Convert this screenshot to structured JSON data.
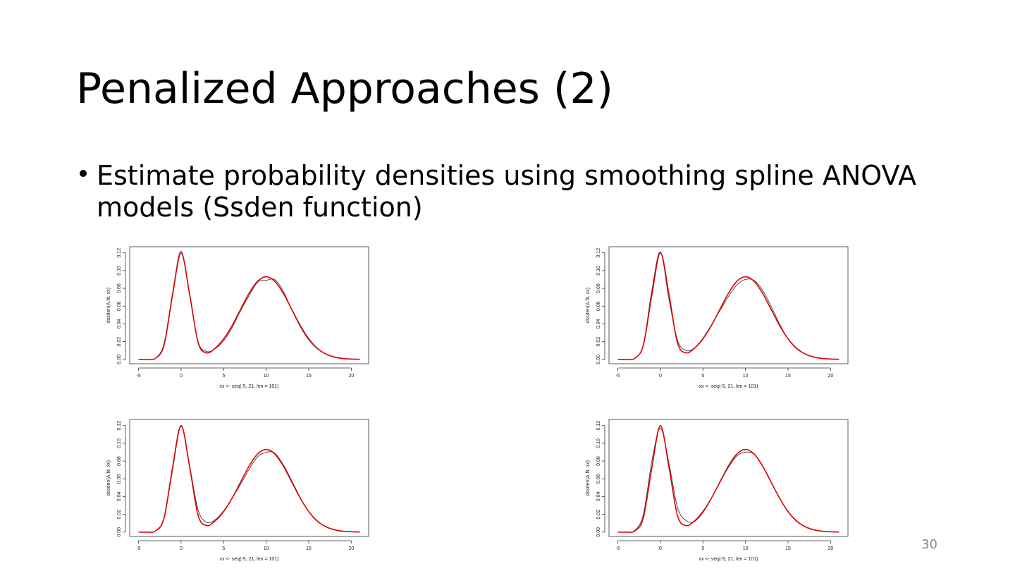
{
  "title": "Penalized Approaches (2)",
  "bullet": {
    "line1": "Estimate probability densities using smoothing spline ANOVA",
    "line2": "models  (Ssden function)"
  },
  "page_number": "30",
  "chart_data": [
    {
      "type": "line",
      "xlabel": "xx <- seq(-5, 21, len = 101)",
      "ylabel": "dssden(A.fit, xx)",
      "x": [
        -5,
        -4,
        -3,
        -2,
        -1,
        0,
        1,
        2,
        3,
        4,
        5,
        6,
        7,
        8,
        9,
        10,
        11,
        12,
        13,
        14,
        15,
        16,
        17,
        18,
        19,
        20,
        21
      ],
      "series": [
        {
          "color": "#3a3a3a",
          "values": [
            0,
            0,
            0.0015,
            0.018,
            0.075,
            0.122,
            0.072,
            0.02,
            0.009,
            0.012,
            0.021,
            0.036,
            0.055,
            0.072,
            0.087,
            0.089,
            0.09,
            0.077,
            0.056,
            0.037,
            0.022,
            0.012,
            0.006,
            0.003,
            0.0012,
            0.0005,
            0.0002
          ]
        },
        {
          "color": "#e00000",
          "values": [
            0,
            0,
            0.0013,
            0.0162,
            0.0727,
            0.12,
            0.0736,
            0.0189,
            0.0074,
            0.0126,
            0.0232,
            0.0383,
            0.0565,
            0.0746,
            0.0881,
            0.0931,
            0.0881,
            0.0746,
            0.0565,
            0.0383,
            0.0232,
            0.0126,
            0.0061,
            0.0027,
            0.001,
            0.0004,
            0.0001
          ]
        }
      ],
      "xlim": [
        -6.04,
        22.04
      ],
      "ylim": [
        -0.0049,
        0.1269
      ],
      "xticks": [
        -5,
        0,
        5,
        10,
        15,
        20
      ],
      "yticks": [
        {
          "value": 0,
          "label": "0.00"
        },
        {
          "value": 0.02,
          "label": "0.02"
        },
        {
          "value": 0.04,
          "label": "0.04"
        },
        {
          "value": 0.06,
          "label": "0.06"
        },
        {
          "value": 0.08,
          "label": "0.08"
        },
        {
          "value": 0.1,
          "label": "0.10"
        },
        {
          "value": 0.12,
          "label": "0.12"
        }
      ]
    },
    {
      "type": "line",
      "xlabel": "xx <- seq(-5, 21, len = 101)",
      "ylabel": "dssden(A.fit, xx)",
      "x": [
        -5,
        -4,
        -3,
        -2,
        -1,
        0,
        1,
        2,
        3,
        4,
        5,
        6,
        7,
        8,
        9,
        10,
        11,
        12,
        13,
        14,
        15,
        16,
        17,
        18,
        19,
        20,
        21
      ],
      "series": [
        {
          "color": "#3a3a3a",
          "values": [
            0,
            0,
            0.001,
            0.017,
            0.078,
            0.121,
            0.068,
            0.022,
            0.01,
            0.013,
            0.024,
            0.039,
            0.055,
            0.071,
            0.084,
            0.09,
            0.089,
            0.078,
            0.06,
            0.04,
            0.023,
            0.012,
            0.006,
            0.003,
            0.0012,
            0.0005,
            0.0002
          ]
        },
        {
          "color": "#e00000",
          "values": [
            0,
            0,
            0.0013,
            0.0162,
            0.0727,
            0.12,
            0.0736,
            0.0189,
            0.0074,
            0.0126,
            0.0232,
            0.0383,
            0.0565,
            0.0746,
            0.0881,
            0.0931,
            0.0881,
            0.0746,
            0.0565,
            0.0383,
            0.0232,
            0.0126,
            0.0061,
            0.0027,
            0.001,
            0.0004,
            0.0001
          ]
        }
      ],
      "xlim": [
        -6.04,
        22.04
      ],
      "ylim": [
        -0.0049,
        0.1269
      ],
      "xticks": [
        -5,
        0,
        5,
        10,
        15,
        20
      ],
      "yticks": [
        {
          "value": 0,
          "label": "0.00"
        },
        {
          "value": 0.02,
          "label": "0.02"
        },
        {
          "value": 0.04,
          "label": "0.04"
        },
        {
          "value": 0.06,
          "label": "0.06"
        },
        {
          "value": 0.08,
          "label": "0.08"
        },
        {
          "value": 0.1,
          "label": "0.10"
        },
        {
          "value": 0.12,
          "label": "0.12"
        }
      ]
    },
    {
      "type": "line",
      "xlabel": "xx <- seq(-5, 21, len = 101)",
      "ylabel": "dssden(A.fit, xx)",
      "x": [
        -5,
        -4,
        -3,
        -2,
        -1,
        0,
        1,
        2,
        3,
        4,
        5,
        6,
        7,
        8,
        9,
        10,
        11,
        12,
        13,
        14,
        15,
        16,
        17,
        18,
        19,
        20,
        21
      ],
      "series": [
        {
          "color": "#3a3a3a",
          "values": [
            0,
            0,
            0.0012,
            0.015,
            0.07,
            0.119,
            0.075,
            0.025,
            0.011,
            0.014,
            0.024,
            0.038,
            0.054,
            0.071,
            0.085,
            0.09,
            0.089,
            0.076,
            0.058,
            0.039,
            0.023,
            0.012,
            0.006,
            0.0028,
            0.0011,
            0.0004,
            0.0001
          ]
        },
        {
          "color": "#e00000",
          "values": [
            0,
            0,
            0.0013,
            0.0162,
            0.0727,
            0.12,
            0.0736,
            0.0189,
            0.0074,
            0.0126,
            0.0232,
            0.0383,
            0.0565,
            0.0746,
            0.0881,
            0.0931,
            0.0881,
            0.0746,
            0.0565,
            0.0383,
            0.0232,
            0.0126,
            0.0061,
            0.0027,
            0.001,
            0.0004,
            0.0001
          ]
        }
      ],
      "xlim": [
        -6.04,
        22.04
      ],
      "ylim": [
        -0.0049,
        0.1269
      ],
      "xticks": [
        -5,
        0,
        5,
        10,
        15,
        20
      ],
      "yticks": [
        {
          "value": 0,
          "label": "0.00"
        },
        {
          "value": 0.02,
          "label": "0.02"
        },
        {
          "value": 0.04,
          "label": "0.04"
        },
        {
          "value": 0.06,
          "label": "0.06"
        },
        {
          "value": 0.08,
          "label": "0.08"
        },
        {
          "value": 0.1,
          "label": "0.10"
        },
        {
          "value": 0.12,
          "label": "0.12"
        }
      ]
    },
    {
      "type": "line",
      "xlabel": "xx <- seq(-5, 21, len = 101)",
      "ylabel": "dssden(A.fit, xx)",
      "x": [
        -5,
        -4,
        -3,
        -2,
        -1,
        0,
        1,
        2,
        3,
        4,
        5,
        6,
        7,
        8,
        9,
        10,
        11,
        12,
        13,
        14,
        15,
        16,
        17,
        18,
        19,
        20,
        21
      ],
      "series": [
        {
          "color": "#3a3a3a",
          "values": [
            0,
            0,
            0.002,
            0.02,
            0.08,
            0.117,
            0.078,
            0.028,
            0.013,
            0.012,
            0.022,
            0.038,
            0.056,
            0.073,
            0.086,
            0.09,
            0.088,
            0.075,
            0.057,
            0.038,
            0.023,
            0.012,
            0.006,
            0.0028,
            0.0011,
            0.0004,
            0.0001
          ]
        },
        {
          "color": "#e00000",
          "values": [
            0,
            0,
            0.0013,
            0.0162,
            0.0727,
            0.12,
            0.0736,
            0.0189,
            0.0074,
            0.0126,
            0.0232,
            0.0383,
            0.0565,
            0.0746,
            0.0881,
            0.0931,
            0.0881,
            0.0746,
            0.0565,
            0.0383,
            0.0232,
            0.0126,
            0.0061,
            0.0027,
            0.001,
            0.0004,
            0.0001
          ]
        }
      ],
      "xlim": [
        -6.04,
        22.04
      ],
      "ylim": [
        -0.0049,
        0.1269
      ],
      "xticks": [
        -5,
        0,
        5,
        10,
        15,
        20
      ],
      "yticks": [
        {
          "value": 0,
          "label": "0.00"
        },
        {
          "value": 0.02,
          "label": "0.02"
        },
        {
          "value": 0.04,
          "label": "0.04"
        },
        {
          "value": 0.06,
          "label": "0.06"
        },
        {
          "value": 0.08,
          "label": "0.08"
        },
        {
          "value": 0.1,
          "label": "0.10"
        },
        {
          "value": 0.12,
          "label": "0.12"
        }
      ]
    }
  ]
}
